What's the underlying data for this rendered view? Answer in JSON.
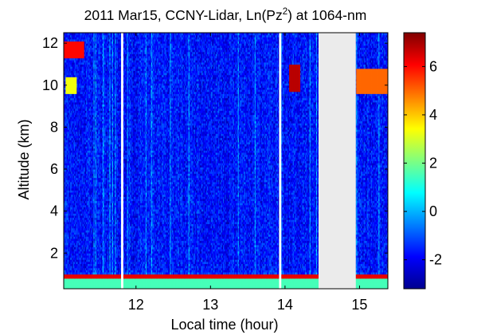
{
  "chart_data": {
    "type": "heatmap",
    "title": {
      "main": "2011 Mar15, CCNY-Lidar, Ln(Pz",
      "sup": "2",
      "rest": ") at 1064-nm"
    },
    "xlabel": "Local time (hour)",
    "ylabel": "Altitude (km)",
    "xlim": [
      11.03,
      15.38
    ],
    "ylim": [
      0.3,
      12.5
    ],
    "xticks": [
      12,
      13,
      14,
      15
    ],
    "yticks": [
      2,
      4,
      6,
      8,
      10,
      12
    ],
    "colorbar": {
      "clim": [
        -3.2,
        7.4
      ],
      "ticks": [
        -2,
        0,
        2,
        4,
        6
      ],
      "colormap": "jet"
    },
    "data_gaps_hours": [
      [
        11.8,
        11.83
      ],
      [
        13.92,
        13.95
      ],
      [
        14.45,
        14.95
      ]
    ],
    "features": {
      "boundary_layer_top_km": 0.9,
      "near_surface_value": 1.5,
      "boundary_layer_value": 6.3,
      "clear_air_value": -1.7,
      "clouds": [
        {
          "t_start": 11.03,
          "t_end": 11.3,
          "alt_bottom_km": 11.3,
          "alt_top_km": 12.1,
          "value": 6.0
        },
        {
          "t_start": 11.05,
          "t_end": 11.2,
          "alt_bottom_km": 9.6,
          "alt_top_km": 10.4,
          "value": 3.3
        },
        {
          "t_start": 14.05,
          "t_end": 14.2,
          "alt_bottom_km": 9.7,
          "alt_top_km": 11.0,
          "value": 6.8
        },
        {
          "t_start": 14.96,
          "t_end": 15.38,
          "alt_bottom_km": 9.6,
          "alt_top_km": 10.8,
          "value": 5.0
        }
      ]
    }
  }
}
